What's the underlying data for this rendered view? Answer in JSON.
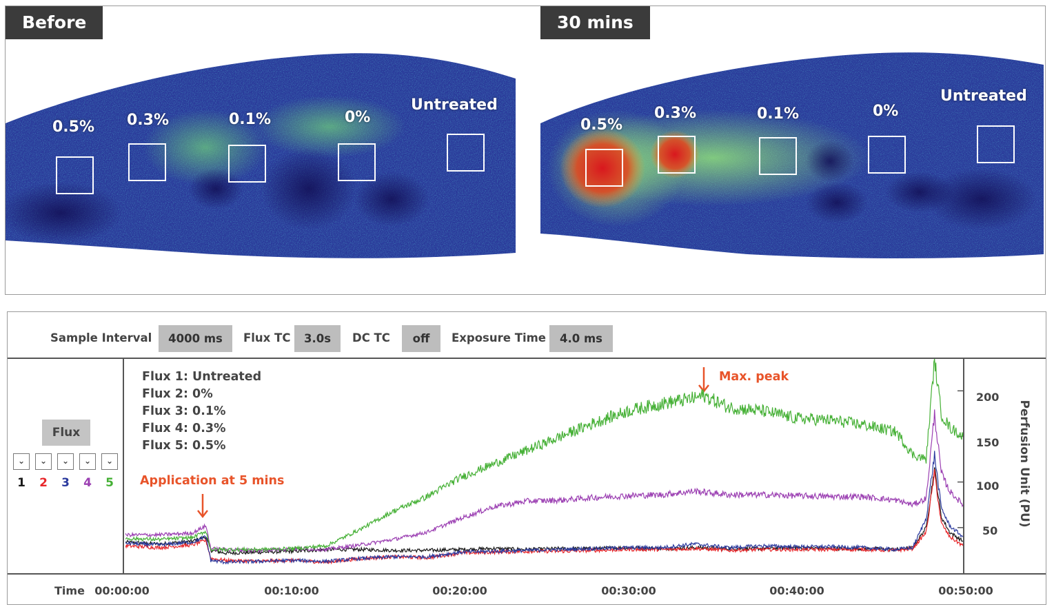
{
  "images": {
    "before": {
      "tag": "Before",
      "rois": [
        "0.5%",
        "0.3%",
        "0.1%",
        "0%",
        "Untreated"
      ]
    },
    "after": {
      "tag": "30 mins",
      "rois": [
        "0.5%",
        "0.3%",
        "0.1%",
        "0%",
        "Untreated"
      ]
    }
  },
  "settings": [
    {
      "label": "Sample Interval",
      "value": "4000 ms"
    },
    {
      "label": "Flux TC",
      "value": "3.0s"
    },
    {
      "label": "DC TC",
      "value": "off"
    },
    {
      "label": "Exposure Time",
      "value": "4.0 ms"
    }
  ],
  "channel_panel": {
    "button": "Flux",
    "checkbox_icon": "chevron-down-icon",
    "channels": [
      {
        "num": "1",
        "color": "#1a1a1a"
      },
      {
        "num": "2",
        "color": "#e8262a"
      },
      {
        "num": "3",
        "color": "#2b3a9e"
      },
      {
        "num": "4",
        "color": "#9b3fb2"
      },
      {
        "num": "5",
        "color": "#45b035"
      }
    ]
  },
  "legend": [
    "Flux 1: Untreated",
    "Flux 2: 0%",
    "Flux 3: 0.1%",
    "Flux 4: 0.3%",
    "Flux 5: 0.5%"
  ],
  "annotations": {
    "application": "Application at 5 mins",
    "max_peak": "Max. peak"
  },
  "chart_data": {
    "type": "line",
    "xlabel": "Time",
    "ylabel": "Perfusion Unit (PU)",
    "x_ticks": [
      "00:00:00",
      "00:10:00",
      "00:20:00",
      "00:30:00",
      "00:40:00",
      "00:50:00"
    ],
    "xlim": [
      0,
      50
    ],
    "y_ticks": [
      50,
      100,
      150,
      200
    ],
    "ylim": [
      0,
      235
    ],
    "x_unit": "minutes",
    "series": [
      {
        "name": "Flux 1: Untreated",
        "color": "#1a1a1a",
        "x": [
          0,
          2,
          4,
          4.8,
          5.1,
          6,
          8,
          10,
          12,
          14,
          16,
          18,
          20,
          22,
          24,
          26,
          28,
          30,
          32,
          34,
          36,
          38,
          40,
          42,
          44,
          46,
          47,
          47.8,
          48.3,
          48.7,
          49.2,
          50
        ],
        "y": [
          34,
          32,
          35,
          40,
          25,
          22,
          23,
          24,
          26,
          26,
          25,
          25,
          26,
          27,
          26,
          27,
          27,
          28,
          27,
          28,
          27,
          27,
          28,
          27,
          27,
          26,
          28,
          50,
          115,
          62,
          45,
          35
        ]
      },
      {
        "name": "Flux 2: 0%",
        "color": "#e8262a",
        "x": [
          0,
          2,
          4,
          4.8,
          5.1,
          6,
          8,
          10,
          12,
          14,
          16,
          18,
          20,
          22,
          24,
          26,
          28,
          30,
          32,
          34,
          36,
          38,
          40,
          42,
          44,
          46,
          47,
          47.8,
          48.3,
          48.7,
          49.2,
          50
        ],
        "y": [
          30,
          28,
          31,
          36,
          16,
          14,
          13,
          14,
          12,
          16,
          18,
          17,
          22,
          23,
          24,
          24,
          25,
          26,
          26,
          27,
          25,
          26,
          26,
          26,
          26,
          25,
          27,
          45,
          110,
          55,
          40,
          30
        ]
      },
      {
        "name": "Flux 3: 0.1%",
        "color": "#2b3a9e",
        "x": [
          0,
          2,
          4,
          4.8,
          5.1,
          6,
          8,
          10,
          12,
          14,
          16,
          18,
          20,
          22,
          24,
          26,
          28,
          30,
          32,
          34,
          36,
          38,
          40,
          42,
          44,
          46,
          47,
          47.8,
          48.3,
          48.7,
          49.2,
          50
        ],
        "y": [
          33,
          31,
          34,
          40,
          14,
          12,
          13,
          14,
          13,
          16,
          18,
          18,
          23,
          24,
          25,
          26,
          27,
          28,
          28,
          32,
          28,
          30,
          29,
          29,
          28,
          26,
          28,
          60,
          130,
          72,
          52,
          40
        ]
      },
      {
        "name": "Flux 4: 0.3%",
        "color": "#9b3fb2",
        "x": [
          0,
          2,
          4,
          4.8,
          5.1,
          6,
          8,
          10,
          12,
          14,
          16,
          18,
          20,
          22,
          24,
          26,
          28,
          30,
          32,
          34,
          36,
          38,
          40,
          42,
          44,
          46,
          47,
          47.8,
          48.3,
          48.7,
          49.2,
          50
        ],
        "y": [
          42,
          42,
          44,
          52,
          27,
          26,
          25,
          27,
          26,
          31,
          37,
          45,
          60,
          73,
          79,
          80,
          83,
          85,
          86,
          90,
          86,
          86,
          85,
          84,
          84,
          80,
          75,
          82,
          175,
          110,
          90,
          75
        ]
      },
      {
        "name": "Flux 5: 0.5%",
        "color": "#45b035",
        "x": [
          0,
          2,
          4,
          4.8,
          5.1,
          6,
          8,
          10,
          12,
          14,
          16,
          18,
          20,
          22,
          24,
          26,
          28,
          30,
          32,
          34,
          34.5,
          36,
          38,
          40,
          42,
          44,
          46,
          47,
          47.8,
          48.3,
          48.7,
          49.2,
          50
        ],
        "y": [
          38,
          37,
          39,
          46,
          26,
          26,
          26,
          27,
          30,
          48,
          68,
          84,
          105,
          120,
          135,
          150,
          165,
          178,
          186,
          192,
          195,
          182,
          178,
          170,
          168,
          163,
          155,
          130,
          125,
          235,
          175,
          160,
          150
        ]
      }
    ]
  }
}
